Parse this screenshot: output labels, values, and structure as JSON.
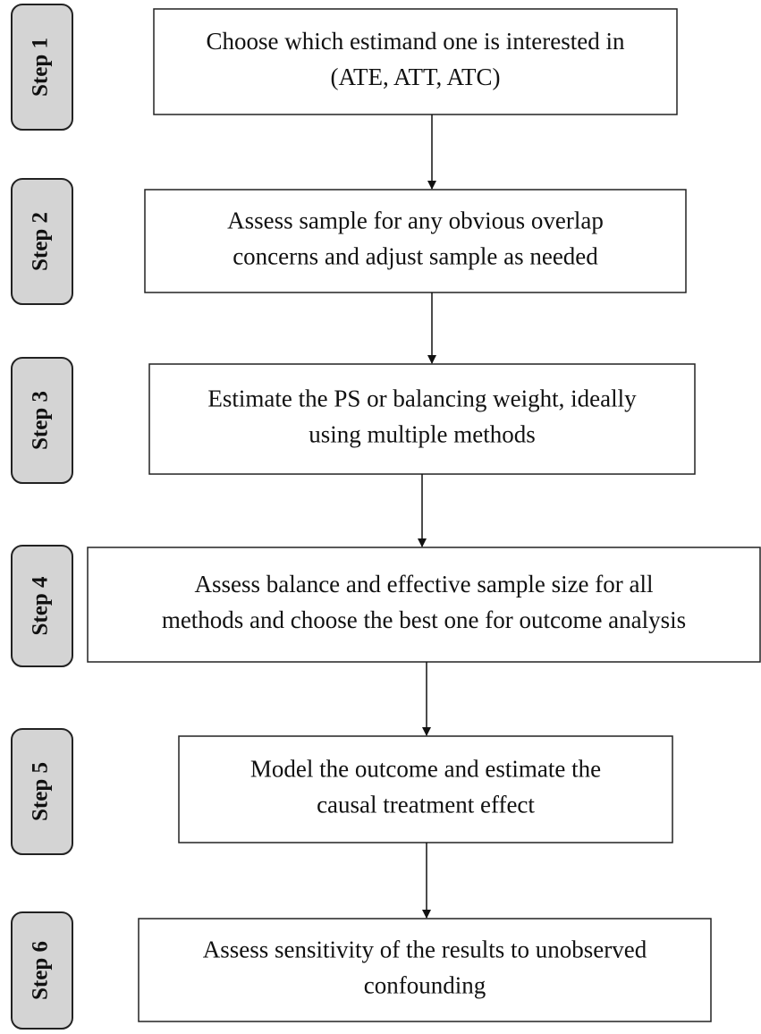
{
  "steps": [
    {
      "tab": "Step 1",
      "lines": [
        "Choose which estimand one is interested in",
        "(ATE, ATT, ATC)"
      ]
    },
    {
      "tab": "Step 2",
      "lines": [
        "Assess sample for any obvious overlap",
        "concerns and adjust sample as needed"
      ]
    },
    {
      "tab": "Step 3",
      "lines": [
        "Estimate the PS or balancing weight, ideally",
        "using multiple methods"
      ]
    },
    {
      "tab": "Step 4",
      "lines": [
        "Assess balance and effective sample size for all",
        "methods and choose the best one for outcome analysis"
      ]
    },
    {
      "tab": "Step 5",
      "lines": [
        "Model the outcome and estimate the",
        "causal treatment effect"
      ]
    },
    {
      "tab": "Step 6",
      "lines": [
        "Assess sensitivity of the results to unobserved",
        "confounding"
      ]
    }
  ]
}
